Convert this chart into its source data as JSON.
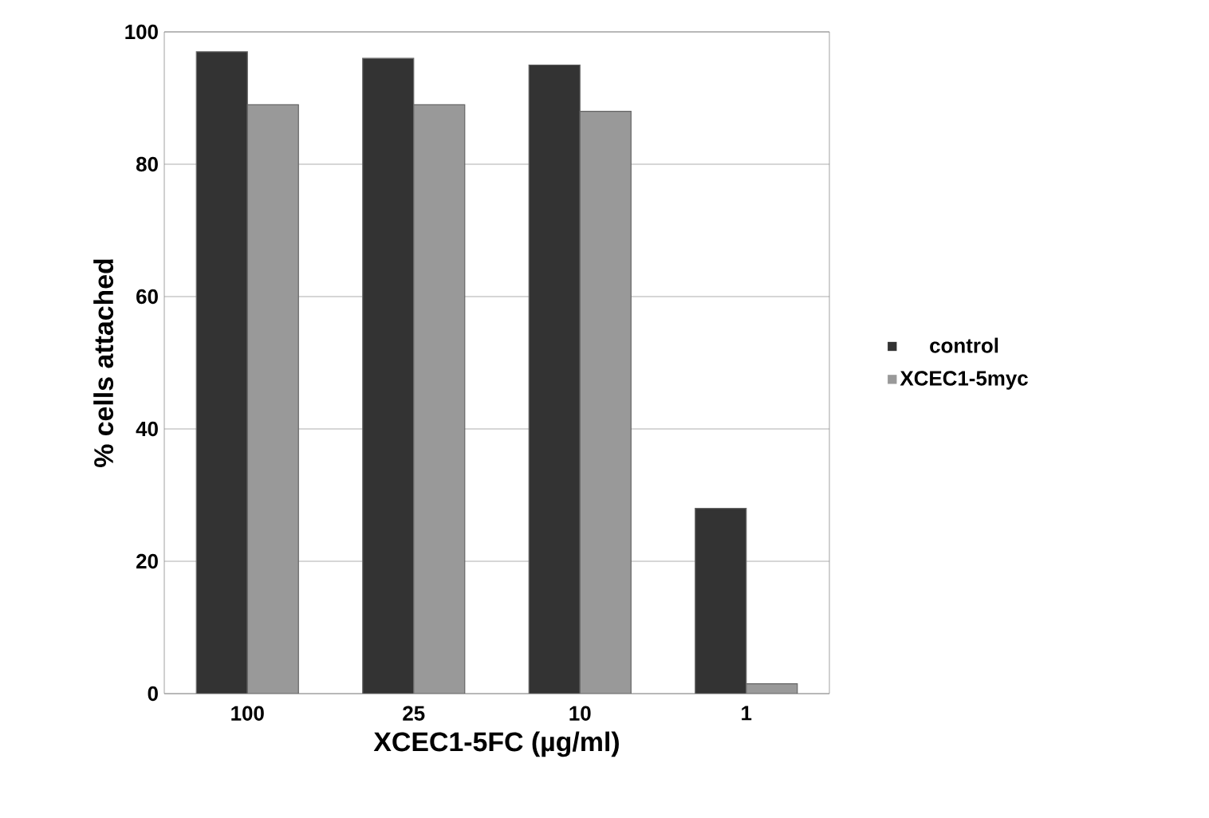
{
  "chart_data": {
    "type": "bar",
    "xlabel": "XCEC1-5FC (µg/ml)",
    "ylabel": "% cells attached",
    "categories": [
      "100",
      "25",
      "10",
      "1"
    ],
    "series": [
      {
        "name": "control",
        "color": "#333333",
        "values": [
          97,
          96,
          95,
          28
        ]
      },
      {
        "name": "XCEC1-5myc",
        "color": "#999999",
        "values": [
          89,
          89,
          88,
          1.5
        ]
      }
    ],
    "ylim": [
      0,
      100
    ],
    "yticks": [
      0,
      20,
      40,
      60,
      80,
      100
    ],
    "grid": "y",
    "legend": "right"
  }
}
